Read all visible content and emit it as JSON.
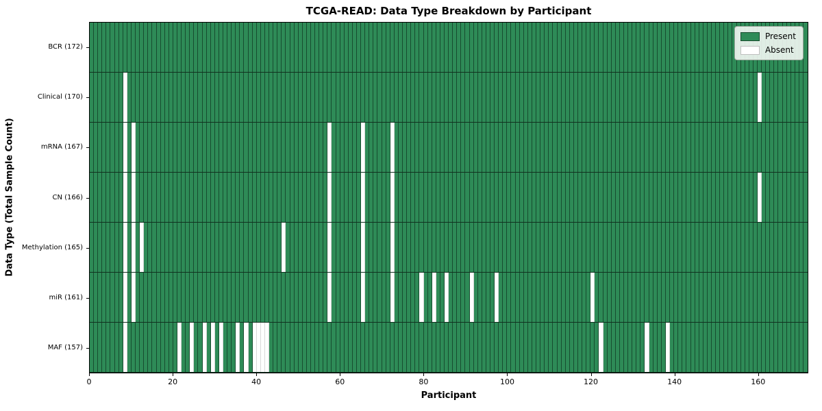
{
  "figure": {
    "title": "TCGA-READ: Data Type Breakdown by Participant",
    "xlabel": "Participant",
    "ylabel": "Data Type (Total Sample Count)"
  },
  "legend": {
    "items": [
      {
        "label": "Present",
        "color": "#2e8b57"
      },
      {
        "label": "Absent",
        "color": "#ffffff"
      }
    ]
  },
  "chart_data": {
    "type": "heatmap",
    "title": "TCGA-READ: Data Type Breakdown by Participant",
    "xlabel": "Participant",
    "ylabel": "Data Type (Total Sample Count)",
    "n_participants": 172,
    "x_ticks": [
      0,
      20,
      40,
      60,
      80,
      100,
      120,
      140,
      160
    ],
    "xlim": [
      0,
      172
    ],
    "grid": "per-cell black edges",
    "legend_position": "upper right",
    "present_color": "#2e8b57",
    "absent_color": "#ffffff",
    "legend": [
      "Present",
      "Absent"
    ],
    "rows": [
      {
        "label": "BCR (172)",
        "name": "BCR",
        "total": 172,
        "absent_participants": []
      },
      {
        "label": "Clinical (170)",
        "name": "Clinical",
        "total": 170,
        "absent_participants": [
          8,
          160
        ]
      },
      {
        "label": "mRNA (167)",
        "name": "mRNA",
        "total": 167,
        "absent_participants": [
          8,
          10,
          57,
          65,
          72
        ]
      },
      {
        "label": "CN (166)",
        "name": "CN",
        "total": 166,
        "absent_participants": [
          8,
          10,
          57,
          65,
          72,
          160
        ]
      },
      {
        "label": "Methylation (165)",
        "name": "Methylation",
        "total": 165,
        "absent_participants": [
          8,
          10,
          12,
          46,
          57,
          65,
          72
        ]
      },
      {
        "label": "miR (161)",
        "name": "miR",
        "total": 161,
        "absent_participants": [
          8,
          10,
          57,
          65,
          72,
          79,
          82,
          85,
          91,
          97,
          120
        ]
      },
      {
        "label": "MAF (157)",
        "name": "MAF",
        "total": 157,
        "absent_participants": [
          8,
          21,
          24,
          27,
          29,
          31,
          35,
          37,
          39,
          40,
          41,
          42,
          122,
          133,
          138
        ]
      }
    ]
  }
}
